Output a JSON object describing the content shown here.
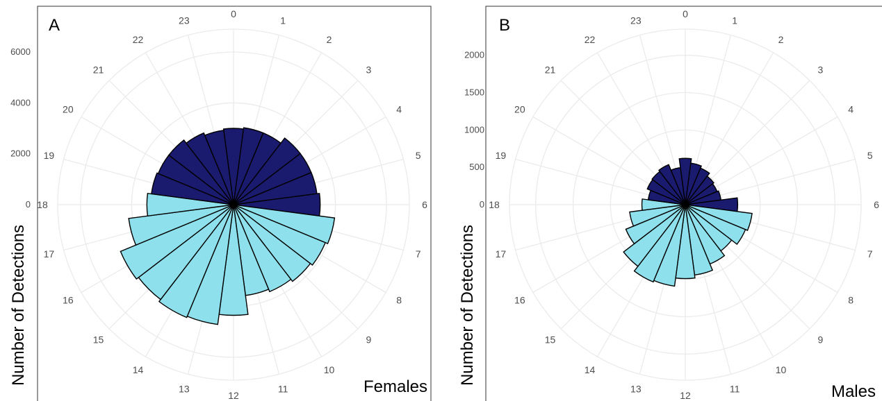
{
  "chart_data": [
    {
      "type": "polar-bar",
      "panel_label": "A",
      "subtitle": "Females",
      "ylabel": "Number of Detections",
      "ylim": [
        0,
        6900
      ],
      "yticks": [
        0,
        2000,
        4000,
        6000
      ],
      "ytick_labels": [
        "0",
        "2000",
        "4000",
        "6000"
      ],
      "categories": [
        "0",
        "1",
        "2",
        "3",
        "4",
        "5",
        "6",
        "7",
        "8",
        "9",
        "10",
        "11",
        "12",
        "13",
        "14",
        "15",
        "16",
        "17",
        "18",
        "19",
        "20",
        "21",
        "22",
        "23"
      ],
      "values": [
        3000,
        3050,
        3050,
        3300,
        3300,
        3300,
        3400,
        4000,
        3900,
        3800,
        3700,
        3600,
        4350,
        4750,
        4800,
        4700,
        4800,
        4150,
        3400,
        3250,
        3200,
        3200,
        3050,
        2950
      ],
      "fill_colors": [
        "#1a1a6e",
        "#1a1a6e",
        "#1a1a6e",
        "#1a1a6e",
        "#1a1a6e",
        "#1a1a6e",
        "#1a1a6e",
        "#8ee0ec",
        "#8ee0ec",
        "#8ee0ec",
        "#8ee0ec",
        "#8ee0ec",
        "#8ee0ec",
        "#8ee0ec",
        "#8ee0ec",
        "#8ee0ec",
        "#8ee0ec",
        "#8ee0ec",
        "#8ee0ec",
        "#1a1a6e",
        "#1a1a6e",
        "#1a1a6e",
        "#1a1a6e",
        "#1a1a6e"
      ],
      "grid": true
    },
    {
      "type": "polar-bar",
      "panel_label": "B",
      "subtitle": "Males",
      "ylabel": "Number of Detections",
      "ylim": [
        0,
        2350
      ],
      "yticks": [
        0,
        500,
        1000,
        1500,
        2000
      ],
      "ytick_labels": [
        "0",
        "500",
        "1000",
        "1500",
        "2000"
      ],
      "categories": [
        "0",
        "1",
        "2",
        "3",
        "4",
        "5",
        "6",
        "7",
        "8",
        "9",
        "10",
        "11",
        "12",
        "13",
        "14",
        "15",
        "16",
        "17",
        "18",
        "19",
        "20",
        "21",
        "22",
        "23"
      ],
      "values": [
        620,
        560,
        530,
        480,
        460,
        480,
        700,
        900,
        870,
        780,
        860,
        950,
        990,
        1100,
        1120,
        1040,
        860,
        750,
        580,
        500,
        550,
        560,
        580,
        500
      ],
      "fill_colors": [
        "#1a1a6e",
        "#1a1a6e",
        "#1a1a6e",
        "#1a1a6e",
        "#1a1a6e",
        "#1a1a6e",
        "#1a1a6e",
        "#8ee0ec",
        "#8ee0ec",
        "#8ee0ec",
        "#8ee0ec",
        "#8ee0ec",
        "#8ee0ec",
        "#8ee0ec",
        "#8ee0ec",
        "#8ee0ec",
        "#8ee0ec",
        "#8ee0ec",
        "#8ee0ec",
        "#1a1a6e",
        "#1a1a6e",
        "#1a1a6e",
        "#1a1a6e",
        "#1a1a6e"
      ],
      "grid": true
    }
  ]
}
